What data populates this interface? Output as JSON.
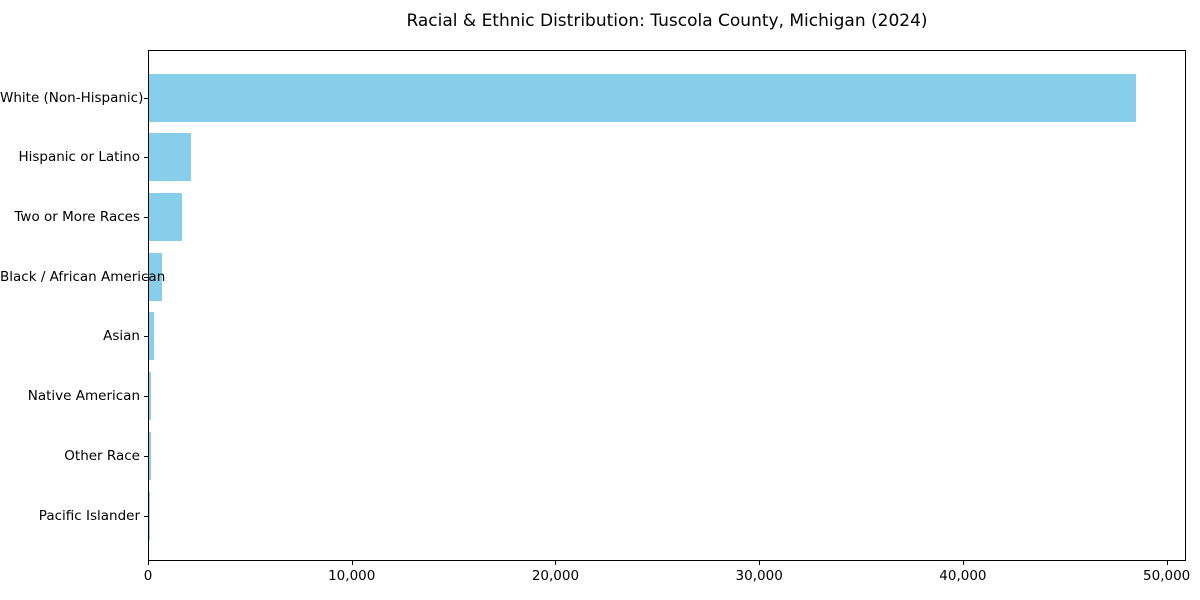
{
  "chart_data": {
    "type": "bar",
    "orientation": "horizontal",
    "title": "Racial & Ethnic Distribution: Tuscola County, Michigan (2024)",
    "categories": [
      "White (Non-Hispanic)",
      "Hispanic or Latino",
      "Two or More Races",
      "Black / African American",
      "Asian",
      "Native American",
      "Other Race",
      "Pacific Islander"
    ],
    "values": [
      48450,
      2050,
      1630,
      650,
      260,
      100,
      75,
      15
    ],
    "xlabel": "",
    "ylabel": "",
    "xlim": [
      0,
      50950
    ],
    "xticks": [
      0,
      10000,
      20000,
      30000,
      40000,
      50000
    ],
    "xtick_labels": [
      "0",
      "10,000",
      "20,000",
      "30,000",
      "40,000",
      "50,000"
    ],
    "grid": false,
    "legend": "none",
    "bar_color": "#87CEEB",
    "axis_color": "#000000",
    "text_color": "#000000",
    "background_color": "#ffffff"
  }
}
